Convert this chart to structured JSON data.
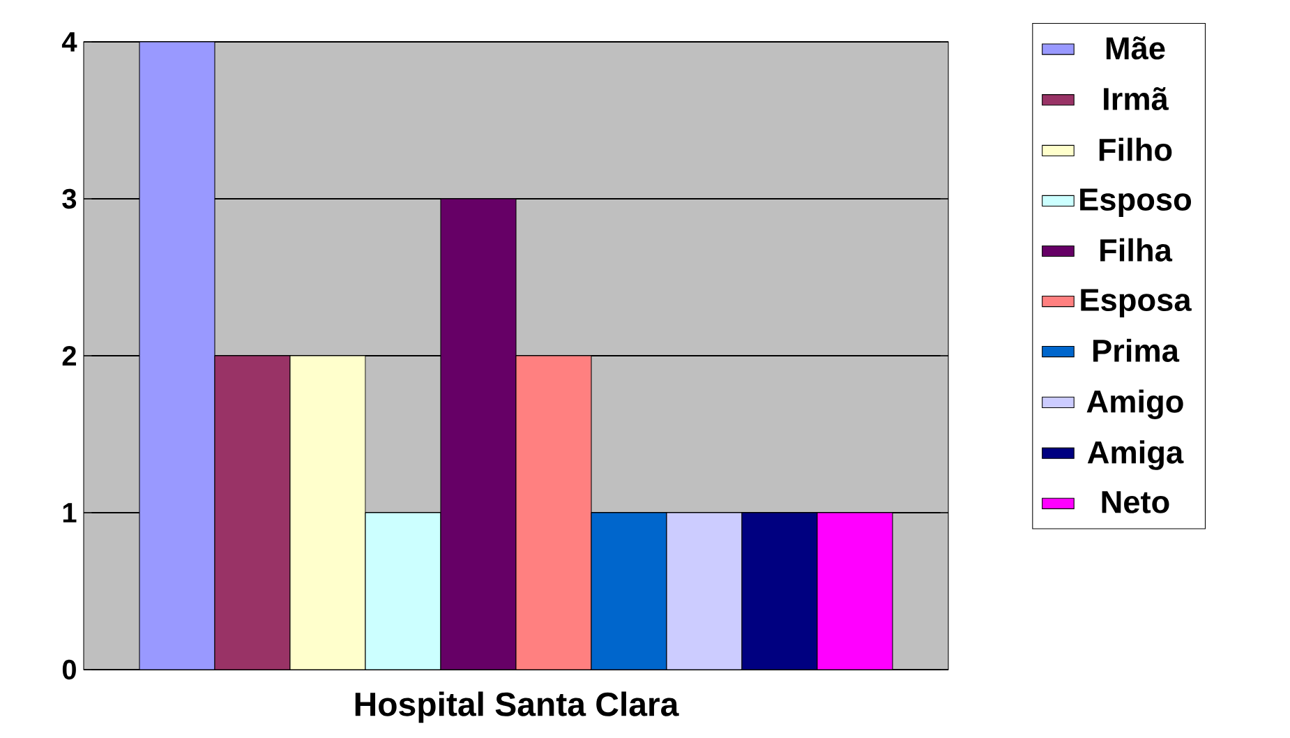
{
  "chart_data": {
    "type": "bar",
    "categories": [
      "Hospital Santa Clara"
    ],
    "series": [
      {
        "name": "Mãe",
        "color": "#9999ff",
        "values": [
          4
        ]
      },
      {
        "name": "Irmã",
        "color": "#993366",
        "values": [
          2
        ]
      },
      {
        "name": "Filho",
        "color": "#ffffcc",
        "values": [
          2
        ]
      },
      {
        "name": "Esposo",
        "color": "#ccffff",
        "values": [
          1
        ]
      },
      {
        "name": "Filha",
        "color": "#660066",
        "values": [
          3
        ]
      },
      {
        "name": "Esposa",
        "color": "#ff8080",
        "values": [
          2
        ]
      },
      {
        "name": "Prima",
        "color": "#0066cc",
        "values": [
          1
        ]
      },
      {
        "name": "Amigo",
        "color": "#ccccff",
        "values": [
          1
        ]
      },
      {
        "name": "Amiga",
        "color": "#000080",
        "values": [
          1
        ]
      },
      {
        "name": "Neto",
        "color": "#ff00ff",
        "values": [
          1
        ]
      }
    ],
    "ylim": [
      0,
      4
    ],
    "yticks": [
      0,
      1,
      2,
      3,
      4
    ],
    "grid": "y",
    "legend": "right"
  }
}
